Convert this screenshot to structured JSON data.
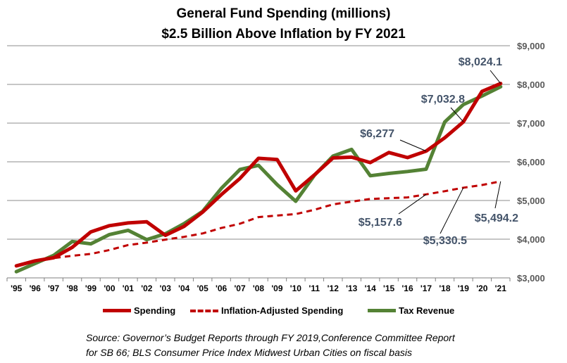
{
  "title": "General Fund Spending (millions)",
  "subtitle": "$2.5 Billion Above Inflation by FY 2021",
  "source_line1": "Source: Governor’s Budget Reports through FY 2019,Conference Committee Report",
  "source_line2": "for SB 66; BLS Consumer Price Index Midwest Urban Cities on fiscal basis",
  "chart_data": {
    "type": "line",
    "categories": [
      "'95",
      "'96",
      "'97",
      "'98",
      "'99",
      "'00",
      "'01",
      "'02",
      "'03",
      "'04",
      "'05",
      "'06",
      "'07",
      "'08",
      "'09",
      "'10",
      "'11",
      "'12",
      "'13",
      "'14",
      "'15",
      "'16",
      "'17",
      "'18",
      "'19",
      "'20",
      "'21"
    ],
    "y_tick_labels": [
      "$3,000",
      "$4,000",
      "$5,000",
      "$6,000",
      "$7,000",
      "$8,000",
      "$9,000"
    ],
    "ylim": [
      3000,
      9000
    ],
    "y_axis_side": "right",
    "grid": true,
    "legend_position": "bottom",
    "series": [
      {
        "name": "Spending",
        "color": "#c00000",
        "style": "solid",
        "values": [
          3310,
          3440,
          3520,
          3790,
          4190,
          4350,
          4420,
          4450,
          4100,
          4330,
          4700,
          5150,
          5570,
          6090,
          6060,
          5250,
          5660,
          6100,
          6120,
          5980,
          6240,
          6110,
          6277,
          6620,
          7032.8,
          7820,
          8024.1
        ]
      },
      {
        "name": "Inflation-Adjusted Spending",
        "color": "#c00000",
        "style": "dashed",
        "values": [
          3320,
          3420,
          3510,
          3570,
          3620,
          3720,
          3850,
          3910,
          3990,
          4060,
          4150,
          4290,
          4400,
          4570,
          4610,
          4650,
          4760,
          4900,
          4970,
          5040,
          5060,
          5080,
          5157.6,
          5240,
          5330.5,
          5400,
          5494.2
        ]
      },
      {
        "name": "Tax Revenue",
        "color": "#548235",
        "style": "solid",
        "values": [
          3160,
          3370,
          3580,
          3940,
          3880,
          4120,
          4230,
          3990,
          4140,
          4400,
          4720,
          5310,
          5800,
          5910,
          5410,
          4980,
          5650,
          6150,
          6320,
          5640,
          5700,
          5750,
          5810,
          7030,
          7480,
          7700,
          7940
        ]
      }
    ],
    "annotations": [
      {
        "text": "$8,024.1",
        "series": 0,
        "index": 26
      },
      {
        "text": "$7,032.8",
        "series": 0,
        "index": 24
      },
      {
        "text": "$6,277",
        "series": 0,
        "index": 22
      },
      {
        "text": "$5,157.6",
        "series": 1,
        "index": 22
      },
      {
        "text": "$5,330.5",
        "series": 1,
        "index": 24
      },
      {
        "text": "$5,494.2",
        "series": 1,
        "index": 26
      }
    ]
  }
}
